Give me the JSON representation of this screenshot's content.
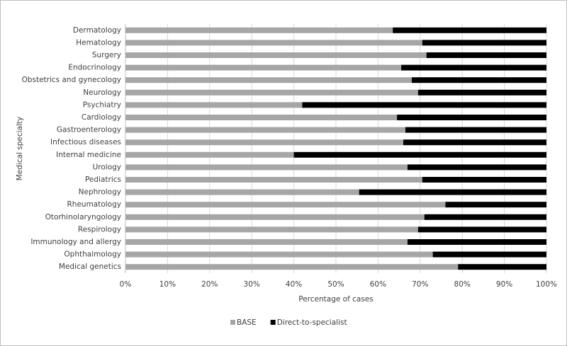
{
  "chart_data": {
    "type": "bar",
    "orientation": "horizontal",
    "stacked": true,
    "x_label": "Percentage of cases",
    "y_label": "Medical specialty",
    "categories": [
      "Dermatology",
      "Hematology",
      "Surgery",
      "Endocrinology",
      "Obstetrics and gynecology",
      "Neurology",
      "Psychiatry",
      "Cardiology",
      "Gastroenterology",
      "Infectious diseases",
      "Internal medicine",
      "Urology",
      "Pediatrics",
      "Nephrology",
      "Rheumatology",
      "Otorhinolaryngology",
      "Respirology",
      "Immunology and allergy",
      "Ophthalmology",
      "Medical genetics"
    ],
    "series": [
      {
        "name": "BASE",
        "color": "#a6a6a6",
        "values": [
          63.5,
          70.5,
          71.5,
          65.5,
          68,
          69.5,
          42,
          64.5,
          66.5,
          66,
          40,
          67,
          70.5,
          55.5,
          76,
          71,
          69.5,
          67,
          73,
          79
        ]
      },
      {
        "name": "Direct-to-specialist",
        "color": "#000000",
        "values": [
          36.5,
          29.5,
          28.5,
          34.5,
          32,
          30.5,
          58,
          35.5,
          33.5,
          34,
          60,
          33,
          29.5,
          44.5,
          24,
          29,
          30.5,
          33,
          27,
          21
        ]
      }
    ],
    "xlim": [
      0,
      100
    ],
    "xticks": [
      {
        "value": 0,
        "label": "0%"
      },
      {
        "value": 10,
        "label": "10%"
      },
      {
        "value": 20,
        "label": "20%"
      },
      {
        "value": 30,
        "label": "30%"
      },
      {
        "value": 40,
        "label": "40%"
      },
      {
        "value": 50,
        "label": "50%"
      },
      {
        "value": 60,
        "label": "60%"
      },
      {
        "value": 70,
        "label": "70%"
      },
      {
        "value": 80,
        "label": "80%"
      },
      {
        "value": 90,
        "label": "90%"
      },
      {
        "value": 100,
        "label": "100%"
      }
    ],
    "grid": true,
    "legend": "bottom"
  }
}
